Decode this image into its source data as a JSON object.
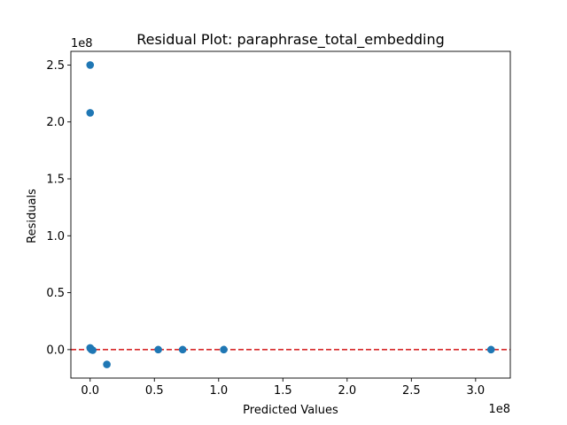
{
  "chart_data": {
    "type": "scatter",
    "title": "Residual Plot: paraphrase_total_embedding",
    "xlabel": "Predicted Values",
    "ylabel": "Residuals",
    "x_offset_label": "1e8",
    "y_offset_label": "1e8",
    "xlim": [
      -0.15,
      3.27
    ],
    "ylim": [
      -0.25,
      2.62
    ],
    "x_ticks": [
      0.0,
      0.5,
      1.0,
      1.5,
      2.0,
      2.5,
      3.0
    ],
    "y_ticks": [
      0.0,
      0.5,
      1.0,
      1.5,
      2.0,
      2.5
    ],
    "x_tick_labels": [
      "0.0",
      "0.5",
      "1.0",
      "1.5",
      "2.0",
      "2.5",
      "3.0"
    ],
    "y_tick_labels": [
      "0.0",
      "0.5",
      "1.0",
      "1.5",
      "2.0",
      "2.5"
    ],
    "reference_line": {
      "y": 0.0,
      "style": "dashed",
      "color": "#d62728"
    },
    "grid": false,
    "legend": "none",
    "series": [
      {
        "color": "#1f77b4",
        "points": [
          {
            "x": 0.0,
            "y": 2.5
          },
          {
            "x": 0.0,
            "y": 2.08
          },
          {
            "x": 0.0,
            "y": 0.015
          },
          {
            "x": 0.005,
            "y": 0.008
          },
          {
            "x": 0.01,
            "y": 0.0
          },
          {
            "x": 0.02,
            "y": -0.005
          },
          {
            "x": 0.13,
            "y": -0.13
          },
          {
            "x": 0.53,
            "y": 0.0
          },
          {
            "x": 0.72,
            "y": 0.0
          },
          {
            "x": 1.04,
            "y": 0.0
          },
          {
            "x": 3.12,
            "y": 0.0
          }
        ]
      }
    ]
  }
}
